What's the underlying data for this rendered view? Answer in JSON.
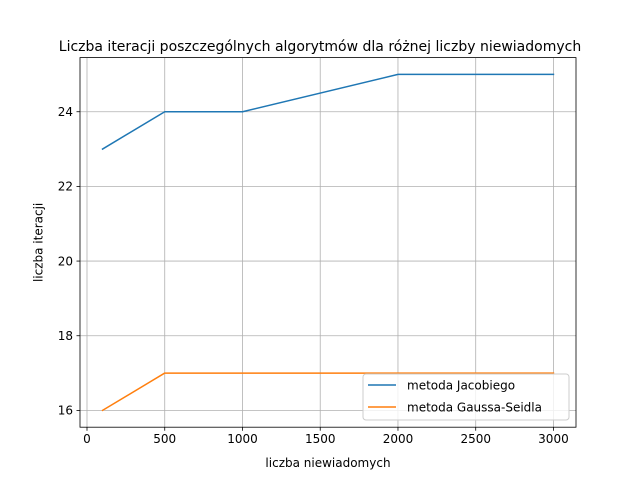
{
  "chart_data": {
    "type": "line",
    "title": "Liczba iteracji poszczególnych algorytmów dla różnej liczby niewiadomych",
    "xlabel": "liczba niewiadomych",
    "ylabel": "liczba iteracji",
    "xlim": [
      -45,
      3145
    ],
    "ylim": [
      15.55,
      25.45
    ],
    "xticks": [
      0,
      500,
      1000,
      1500,
      2000,
      2500,
      3000
    ],
    "yticks": [
      16,
      18,
      20,
      22,
      24
    ],
    "grid": true,
    "legend_position": "lower-right",
    "series": [
      {
        "name": "metoda Jacobiego",
        "color": "#1f77b4",
        "x": [
          100,
          500,
          1000,
          2000,
          3000
        ],
        "y": [
          23,
          24,
          24,
          25,
          25
        ]
      },
      {
        "name": "metoda Gaussa-Seidla",
        "color": "#ff7f0e",
        "x": [
          100,
          500,
          1000,
          2000,
          3000
        ],
        "y": [
          16,
          17,
          17,
          17,
          17
        ]
      }
    ]
  }
}
